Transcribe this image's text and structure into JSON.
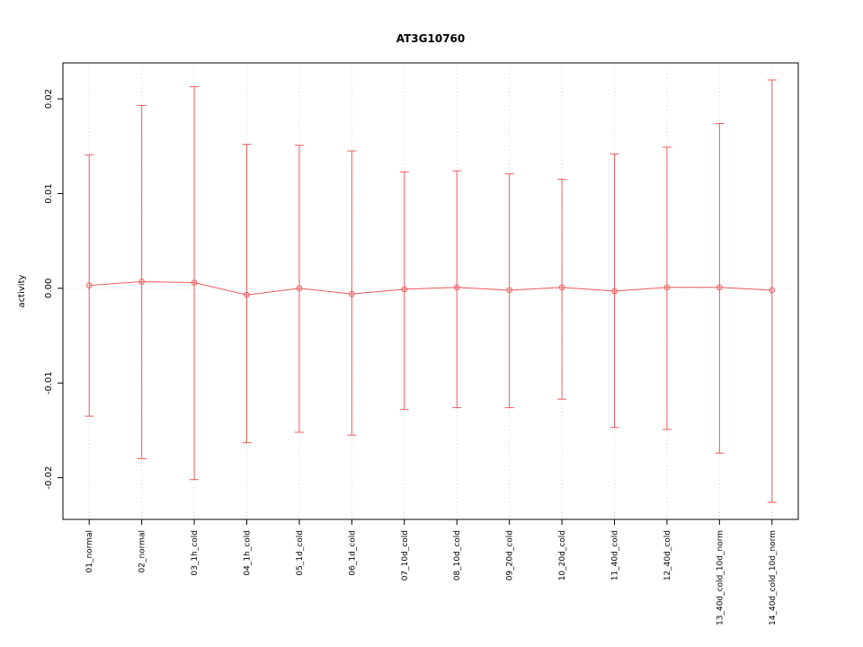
{
  "chart_data": {
    "type": "line",
    "title": "AT3G10760",
    "xlabel": "",
    "ylabel": "activity",
    "categories": [
      "01_normal",
      "02_normal",
      "03_1h_cold",
      "04_1h_cold",
      "05_1d_cold",
      "06_1d_cold",
      "07_10d_cold",
      "08_10d_cold",
      "09_20d_cold",
      "10_20d_cold",
      "11_40d_cold",
      "12_40d_cold",
      "13_40d_cold_10d_norm",
      "14_40d_cold_10d_norm"
    ],
    "series": [
      {
        "name": "activity",
        "means": [
          0.0003,
          0.0007,
          0.0006,
          -0.0007,
          0.0,
          -0.0006,
          -0.0001,
          0.0001,
          -0.0002,
          0.0001,
          -0.0003,
          0.0001,
          0.0001,
          -0.0002
        ],
        "upper": [
          0.0141,
          0.0193,
          0.0213,
          0.0152,
          0.0151,
          0.0145,
          0.0123,
          0.0124,
          0.0121,
          0.0115,
          0.0142,
          0.0149,
          0.0174,
          0.022
        ],
        "lower": [
          -0.0135,
          -0.018,
          -0.0202,
          -0.0163,
          -0.0152,
          -0.0155,
          -0.0128,
          -0.0126,
          -0.0126,
          -0.0117,
          -0.0147,
          -0.0149,
          -0.0174,
          -0.0226
        ]
      }
    ],
    "yticks": [
      {
        "value": -0.02,
        "label": "-0.02"
      },
      {
        "value": -0.01,
        "label": "-0.01"
      },
      {
        "value": 0.0,
        "label": "0.00"
      },
      {
        "value": 0.01,
        "label": "0.01"
      },
      {
        "value": 0.02,
        "label": "0.02"
      }
    ],
    "ylim": [
      -0.0244,
      0.0238
    ],
    "grid": {
      "vertical_per_category": true,
      "zero_line": true,
      "style": "dotted"
    },
    "legend": "none",
    "colors": {
      "series": "#ef5a5a",
      "grid": "#d6d6d6",
      "axis": "#000000",
      "background": "#ffffff"
    }
  }
}
